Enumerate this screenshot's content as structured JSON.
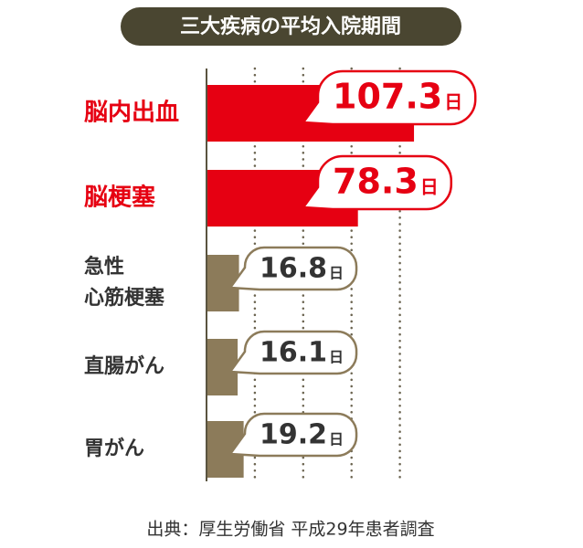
{
  "chart_data": {
    "type": "bar",
    "orientation": "horizontal",
    "title": "三大疾病の平均入院期間",
    "categories": [
      "脳内出血",
      "脳梗塞",
      "急性\n心筋梗塞",
      "直腸がん",
      "胃がん"
    ],
    "values": [
      107.3,
      78.3,
      16.8,
      16.1,
      19.2
    ],
    "unit": "日",
    "colors": [
      "#e60012",
      "#e60012",
      "#8c7b5a",
      "#8c7b5a",
      "#8c7b5a"
    ],
    "label_colors": [
      "#e60012",
      "#e60012",
      "#333333",
      "#333333",
      "#333333"
    ],
    "xlim": [
      0,
      120
    ],
    "xgrid": [
      25,
      50,
      75,
      100
    ],
    "source": "出典：厚生労働省 平成29年患者調査"
  }
}
